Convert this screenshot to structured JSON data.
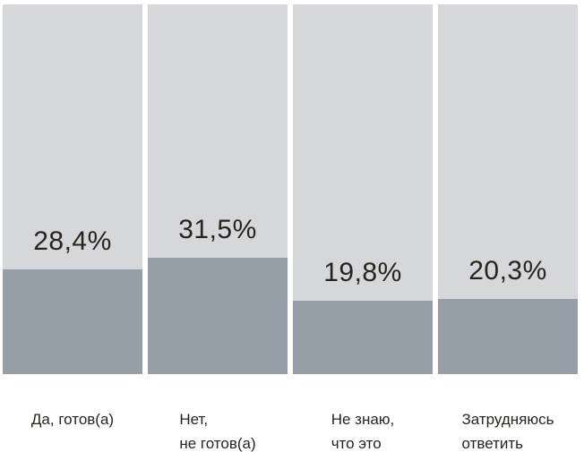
{
  "chart_data": {
    "type": "bar",
    "title": "",
    "xlabel": "",
    "ylabel": "",
    "ylim": [
      0,
      100
    ],
    "grid": false,
    "legend": false,
    "unit": "%",
    "categories": [
      "Да, готов(а)",
      "Нет, не готов(а)",
      "Не знаю, что это",
      "Затрудняюсь ответить"
    ],
    "values": [
      28.4,
      31.5,
      19.8,
      20.3
    ],
    "bars": [
      {
        "value": 28.4,
        "value_label": "28,4%",
        "category_line1": "Да, готов(а)",
        "category_line2": ""
      },
      {
        "value": 31.5,
        "value_label": "31,5%",
        "category_line1": "Нет,",
        "category_line2": "не готов(а)"
      },
      {
        "value": 19.8,
        "value_label": "19,8%",
        "category_line1": "Не знаю,",
        "category_line2": "что это"
      },
      {
        "value": 20.3,
        "value_label": "20,3%",
        "category_line1": "Затрудняюсь",
        "category_line2": "ответить"
      }
    ],
    "colors": {
      "track": "#d5d7da",
      "fill": "#969fa8",
      "text": "#2a231d",
      "background": "#ffffff"
    }
  }
}
